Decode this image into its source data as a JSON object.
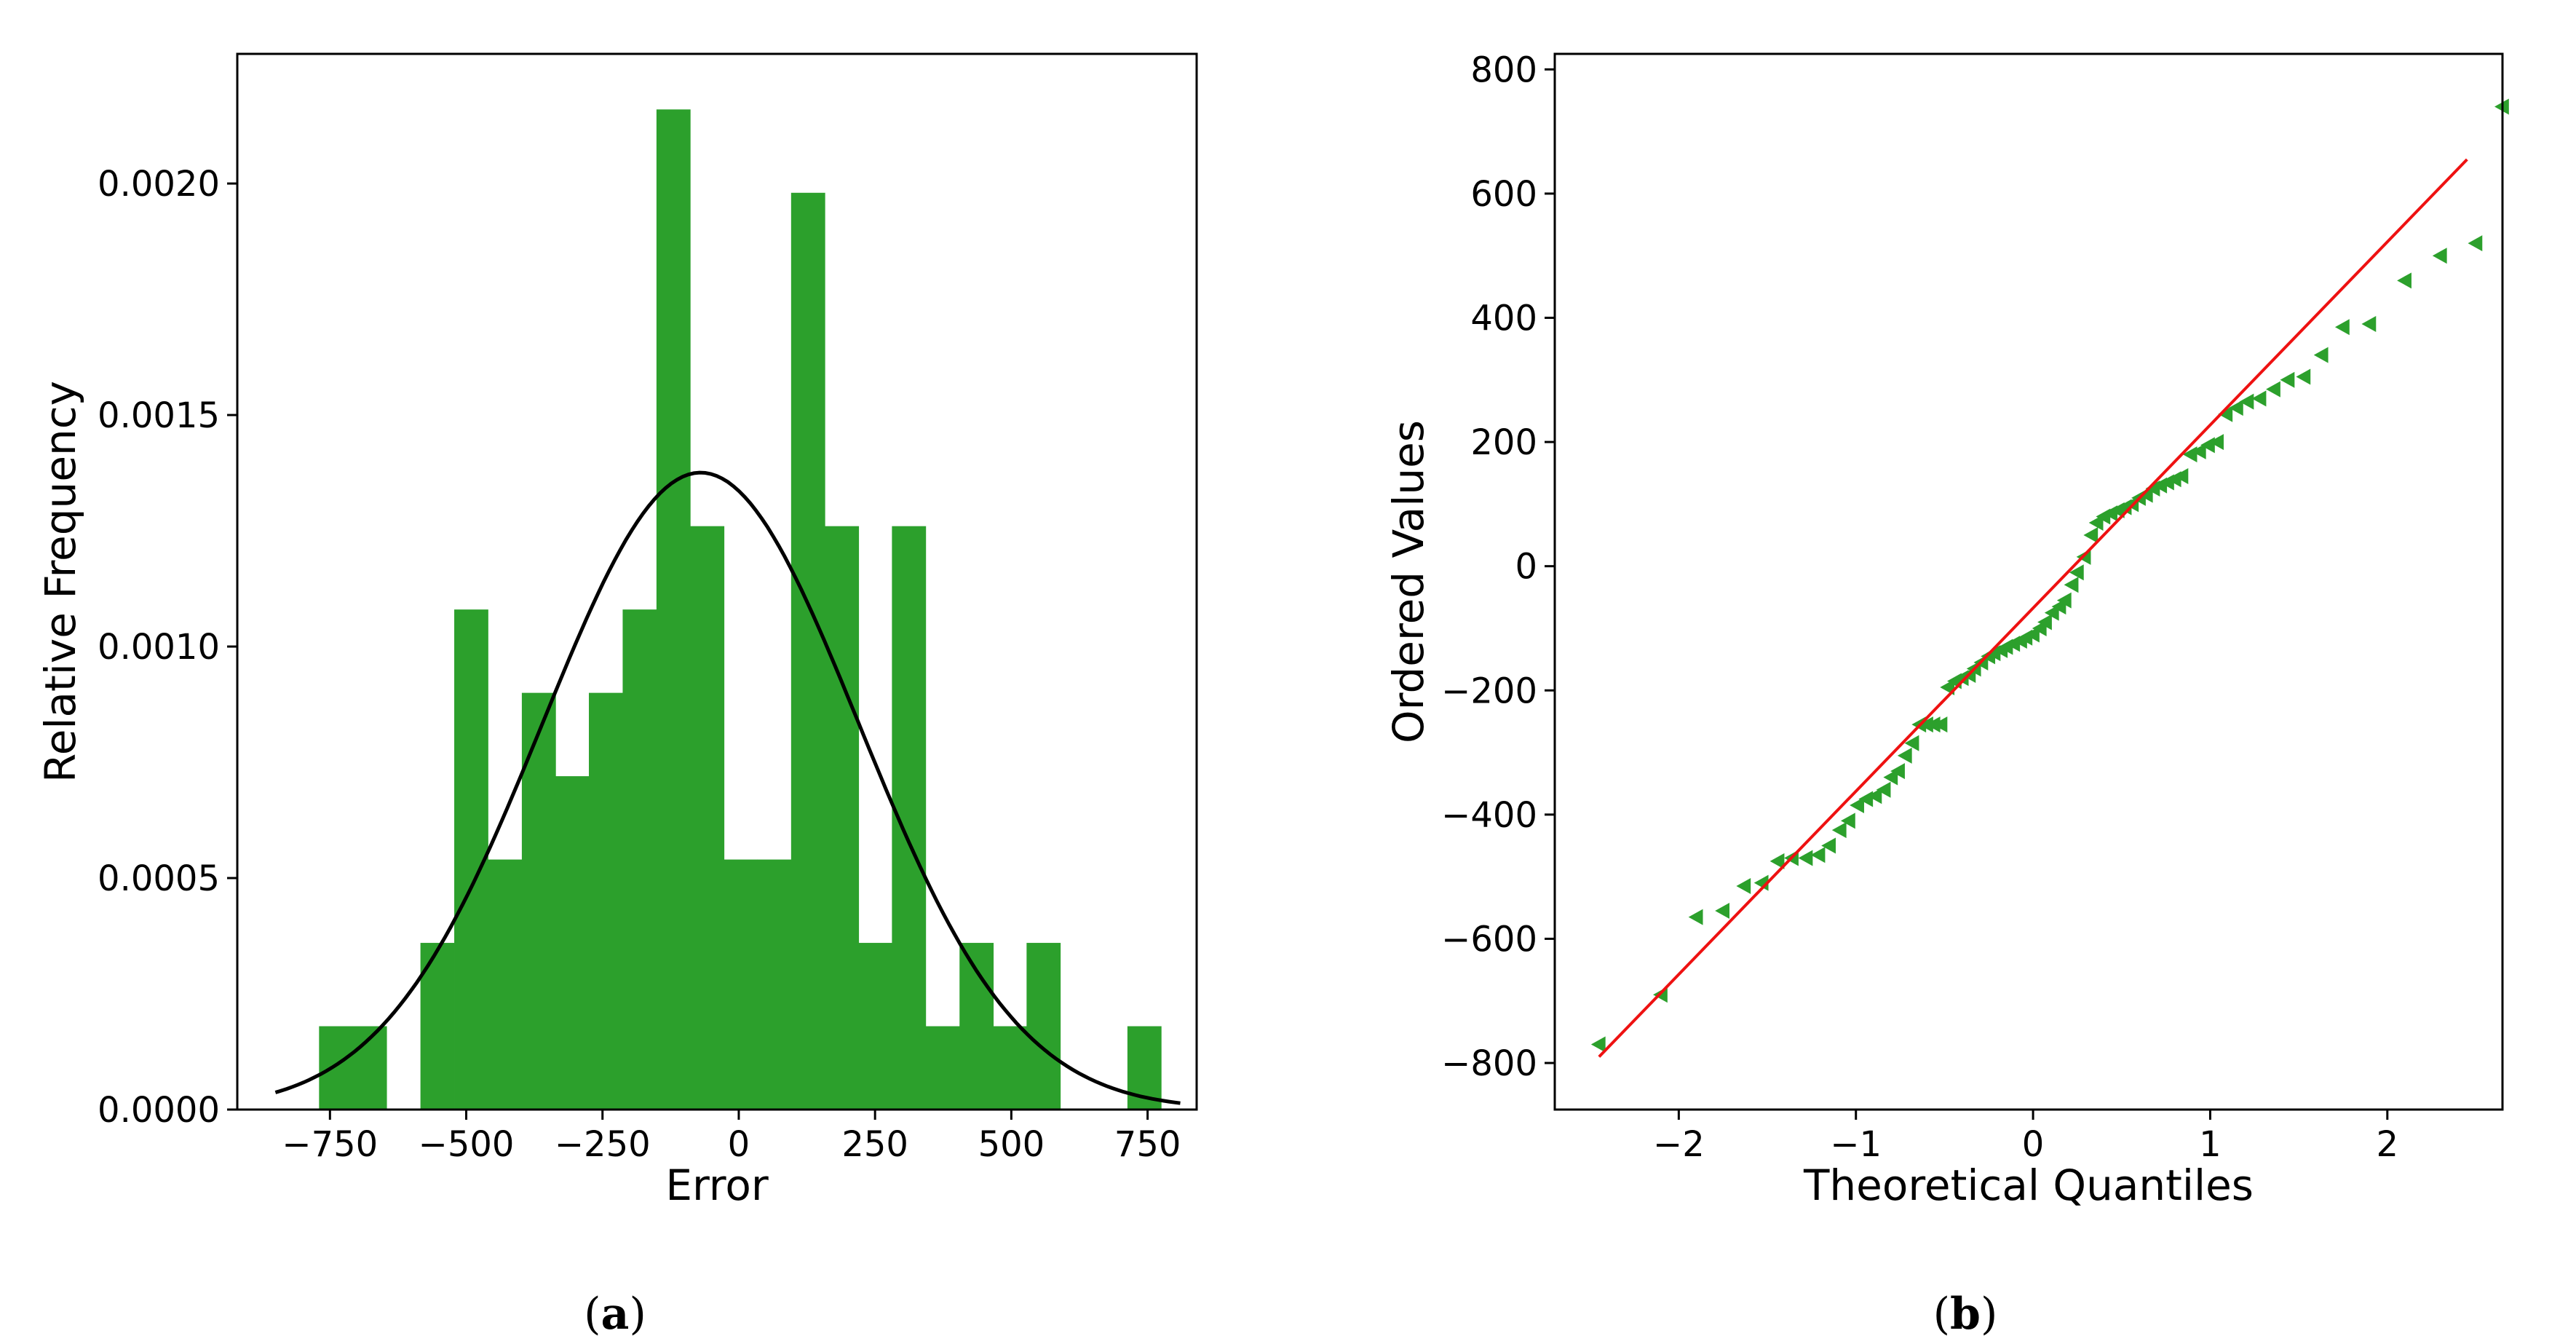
{
  "chart_data": [
    {
      "panel_label": "a",
      "type": "bar",
      "subtype": "histogram-with-normal-fit",
      "xlabel": "Error",
      "ylabel": "Relative Frequency",
      "xlim": [
        -920,
        840
      ],
      "ylim": [
        0,
        0.00228
      ],
      "x_ticks": [
        -750,
        -500,
        -250,
        0,
        250,
        500,
        750
      ],
      "x_tick_labels": [
        "−750",
        "−500",
        "−250",
        "0",
        "250",
        "500",
        "750"
      ],
      "y_ticks": [
        0,
        0.0005,
        0.001,
        0.0015,
        0.002
      ],
      "y_tick_labels": [
        "0.0000",
        "0.0005",
        "0.0010",
        "0.0015",
        "0.0020"
      ],
      "bin_width": 61.7,
      "bins": [
        {
          "x0": -770,
          "value": 0.00018
        },
        {
          "x0": -708,
          "value": 0.00018
        },
        {
          "x0": -646,
          "value": 0
        },
        {
          "x0": -584,
          "value": 0.00036
        },
        {
          "x0": -522,
          "value": 0.00108
        },
        {
          "x0": -460,
          "value": 0.00054
        },
        {
          "x0": -398,
          "value": 0.0009
        },
        {
          "x0": -336,
          "value": 0.00072
        },
        {
          "x0": -275,
          "value": 0.0009
        },
        {
          "x0": -213,
          "value": 0.00108
        },
        {
          "x0": -151,
          "value": 0.00216
        },
        {
          "x0": -89,
          "value": 0.00126
        },
        {
          "x0": -28,
          "value": 0.00054
        },
        {
          "x0": 34,
          "value": 0.00054
        },
        {
          "x0": 96,
          "value": 0.00198
        },
        {
          "x0": 158,
          "value": 0.00126
        },
        {
          "x0": 219,
          "value": 0.00036
        },
        {
          "x0": 281,
          "value": 0.00126
        },
        {
          "x0": 343,
          "value": 0.00018
        },
        {
          "x0": 405,
          "value": 0.00036
        },
        {
          "x0": 466,
          "value": 0.00018
        },
        {
          "x0": 528,
          "value": 0.00036
        },
        {
          "x0": 590,
          "value": 0
        },
        {
          "x0": 652,
          "value": 0
        },
        {
          "x0": 713,
          "value": 0.00018
        }
      ],
      "fit": {
        "mean": -70,
        "sd": 290,
        "x_range": [
          -850,
          810
        ]
      },
      "bar_color": "#2ca02c",
      "fit_color": "#000000"
    },
    {
      "panel_label": "b",
      "type": "scatter",
      "subtype": "q-q-plot",
      "xlabel": "Theoretical Quantiles",
      "ylabel": "Ordered Values",
      "xlim": [
        -2.7,
        2.65
      ],
      "ylim": [
        -875,
        825
      ],
      "x_ticks": [
        -2,
        -1,
        0,
        1,
        2
      ],
      "x_tick_labels": [
        "−2",
        "−1",
        "0",
        "1",
        "2"
      ],
      "y_ticks": [
        -800,
        -600,
        -400,
        -200,
        0,
        200,
        400,
        600,
        800
      ],
      "y_tick_labels": [
        "−800",
        "−600",
        "−400",
        "−200",
        "0",
        "200",
        "400",
        "600",
        "800"
      ],
      "points": [
        [
          -2.45,
          -770
        ],
        [
          -2.1,
          -690
        ],
        [
          -1.9,
          -565
        ],
        [
          -1.75,
          -555
        ],
        [
          -1.63,
          -515
        ],
        [
          -1.53,
          -510
        ],
        [
          -1.44,
          -475
        ],
        [
          -1.36,
          -470
        ],
        [
          -1.28,
          -470
        ],
        [
          -1.21,
          -465
        ],
        [
          -1.15,
          -450
        ],
        [
          -1.09,
          -425
        ],
        [
          -1.04,
          -410
        ],
        [
          -0.99,
          -385
        ],
        [
          -0.94,
          -375
        ],
        [
          -0.89,
          -370
        ],
        [
          -0.84,
          -360
        ],
        [
          -0.8,
          -340
        ],
        [
          -0.76,
          -330
        ],
        [
          -0.72,
          -305
        ],
        [
          -0.68,
          -285
        ],
        [
          -0.64,
          -255
        ],
        [
          -0.6,
          -255
        ],
        [
          -0.56,
          -255
        ],
        [
          -0.52,
          -255
        ],
        [
          -0.48,
          -195
        ],
        [
          -0.44,
          -185
        ],
        [
          -0.4,
          -180
        ],
        [
          -0.36,
          -175
        ],
        [
          -0.33,
          -165
        ],
        [
          -0.29,
          -155
        ],
        [
          -0.25,
          -145
        ],
        [
          -0.22,
          -140
        ],
        [
          -0.18,
          -135
        ],
        [
          -0.15,
          -130
        ],
        [
          -0.11,
          -125
        ],
        [
          -0.07,
          -120
        ],
        [
          -0.04,
          -115
        ],
        [
          0,
          -110
        ],
        [
          0.04,
          -100
        ],
        [
          0.07,
          -90
        ],
        [
          0.11,
          -75
        ],
        [
          0.15,
          -65
        ],
        [
          0.18,
          -55
        ],
        [
          0.22,
          -30
        ],
        [
          0.25,
          -10
        ],
        [
          0.29,
          15
        ],
        [
          0.33,
          50
        ],
        [
          0.36,
          70
        ],
        [
          0.4,
          80
        ],
        [
          0.44,
          85
        ],
        [
          0.48,
          90
        ],
        [
          0.52,
          95
        ],
        [
          0.56,
          100
        ],
        [
          0.6,
          110
        ],
        [
          0.64,
          115
        ],
        [
          0.68,
          125
        ],
        [
          0.72,
          130
        ],
        [
          0.76,
          135
        ],
        [
          0.8,
          140
        ],
        [
          0.84,
          145
        ],
        [
          0.89,
          180
        ],
        [
          0.94,
          185
        ],
        [
          0.99,
          195
        ],
        [
          1.04,
          200
        ],
        [
          1.09,
          245
        ],
        [
          1.15,
          255
        ],
        [
          1.21,
          265
        ],
        [
          1.28,
          270
        ],
        [
          1.36,
          285
        ],
        [
          1.44,
          300
        ],
        [
          1.53,
          305
        ],
        [
          1.63,
          340
        ],
        [
          1.75,
          385
        ],
        [
          1.9,
          390
        ],
        [
          2.1,
          460
        ],
        [
          2.3,
          500
        ],
        [
          2.5,
          520
        ],
        [
          2.65,
          740
        ]
      ],
      "fit_line": {
        "x": [
          -2.45,
          2.45
        ],
        "y": [
          -790,
          655
        ]
      },
      "marker": "triangle-left",
      "point_color": "#2ca02c",
      "line_color": "#ee1111"
    }
  ]
}
